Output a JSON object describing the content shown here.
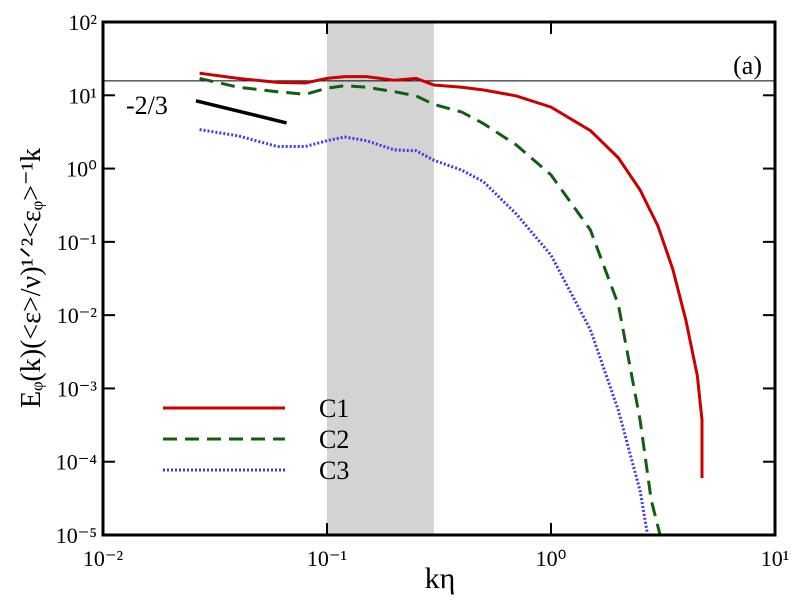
{
  "chart_data": {
    "type": "line",
    "xlabel": "kη",
    "ylabel": "Eᵩ(k)(<ε>/ν)¹ᐟ²<εᵩ>⁻¹k",
    "annotation": "(a)",
    "xscale": "log",
    "yscale": "log",
    "xlim": [
      0.01,
      10
    ],
    "ylim": [
      1e-05,
      100
    ],
    "xticks": [
      {
        "value": 0.01,
        "label": "10⁻²"
      },
      {
        "value": 0.1,
        "label": "10⁻¹"
      },
      {
        "value": 1,
        "label": "10⁰"
      },
      {
        "value": 10,
        "label": "10¹"
      }
    ],
    "yticks": [
      {
        "value": 1e-05,
        "label": "10⁻⁵"
      },
      {
        "value": 0.0001,
        "label": "10⁻⁴"
      },
      {
        "value": 0.001,
        "label": "10⁻³"
      },
      {
        "value": 0.01,
        "label": "10⁻²"
      },
      {
        "value": 0.1,
        "label": "10⁻¹"
      },
      {
        "value": 1,
        "label": "10⁰"
      },
      {
        "value": 10,
        "label": "10¹"
      },
      {
        "value": 100,
        "label": "10²"
      }
    ],
    "shaded_region": [
      0.1,
      0.3
    ],
    "hline": 15.7,
    "slope_line": {
      "label": "-2/3",
      "x": [
        0.026,
        0.066
      ],
      "y": [
        8.4,
        4.2
      ]
    },
    "legend": "lower left",
    "series": [
      {
        "name": "C1",
        "color": "#cc0000",
        "linestyle": "solid",
        "x": [
          0.027,
          0.04,
          0.06,
          0.08,
          0.1,
          0.12,
          0.15,
          0.2,
          0.25,
          0.3,
          0.4,
          0.5,
          0.7,
          1.0,
          1.5,
          2.0,
          2.5,
          3.0,
          3.5,
          4.0,
          4.5,
          4.72,
          4.72
        ],
        "values": [
          20,
          17,
          15,
          14.7,
          17,
          18,
          18,
          16,
          17,
          13.8,
          12.9,
          11.8,
          9.8,
          6.9,
          3.3,
          1.4,
          0.51,
          0.165,
          0.042,
          0.0085,
          0.0015,
          0.00037,
          6e-05
        ]
      },
      {
        "name": "C2",
        "color": "#115e11",
        "linestyle": "dashed",
        "x": [
          0.027,
          0.04,
          0.06,
          0.08,
          0.1,
          0.12,
          0.15,
          0.2,
          0.25,
          0.3,
          0.4,
          0.5,
          0.7,
          1.0,
          1.5,
          2.0,
          2.5,
          2.8,
          3.07
        ],
        "values": [
          17,
          12.9,
          11.2,
          10.3,
          12.5,
          13.5,
          12.9,
          11.2,
          9.8,
          7.5,
          5.9,
          4.1,
          2.1,
          0.82,
          0.145,
          0.0138,
          0.00037,
          3e-05,
          1e-05
        ]
      },
      {
        "name": "C3",
        "color": "#3a3aee",
        "linestyle": "dotted",
        "x": [
          0.027,
          0.04,
          0.06,
          0.08,
          0.1,
          0.12,
          0.15,
          0.2,
          0.25,
          0.3,
          0.4,
          0.5,
          0.7,
          1.0,
          1.5,
          2.0,
          2.5,
          2.7
        ],
        "values": [
          3.4,
          2.8,
          2.0,
          2.0,
          2.4,
          2.7,
          2.4,
          1.8,
          1.75,
          1.3,
          0.95,
          0.66,
          0.24,
          0.066,
          0.0063,
          0.0005,
          4e-05,
          1e-05
        ]
      }
    ]
  }
}
